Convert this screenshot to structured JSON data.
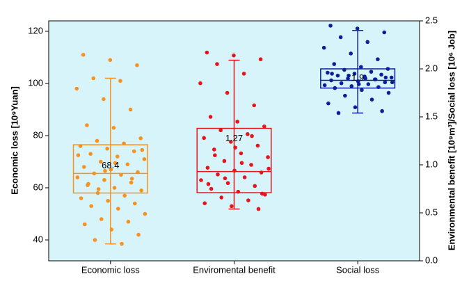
{
  "chart_data": {
    "type": "box",
    "categories": [
      "Economic loss",
      "Enviromental benefit",
      "Social loss"
    ],
    "ylabel": "Economic loss [10⁹Yuan]",
    "y2label": "Environmental benefit [10⁹m³]/Social loss [10⁶ Job]",
    "ylim": [
      32,
      124
    ],
    "yticks": [
      40,
      60,
      80,
      100,
      120
    ],
    "y2lim": [
      0,
      2.5
    ],
    "y2ticks": [
      {
        "value": 0,
        "label": "0.0"
      },
      {
        "value": 0.5,
        "label": "0.5"
      },
      {
        "value": 1,
        "label": "1.0"
      },
      {
        "value": 1.5,
        "label": "1.5"
      },
      {
        "value": 2,
        "label": "2.0"
      },
      {
        "value": 2.5,
        "label": "2.5"
      }
    ],
    "background": "#d8f4fb",
    "series": [
      {
        "color": "#f7921e",
        "axis": "y",
        "box": {
          "whisker_low": 38.5,
          "q1": 58,
          "median": 65.5,
          "q3": 76.5,
          "whisker_high": 102
        },
        "mean": 68.4,
        "points": [
          111,
          109,
          107,
          102,
          101,
          98,
          94,
          90,
          84,
          83,
          79,
          78,
          77,
          76,
          75,
          74,
          73,
          72,
          71,
          70,
          69,
          68,
          67,
          66,
          65.5,
          65,
          64,
          63,
          62,
          61,
          60,
          59,
          58,
          57,
          56,
          55,
          54,
          53,
          52,
          50,
          48,
          47,
          46,
          44,
          42,
          40,
          38.5,
          72.5,
          66.5,
          63.5,
          61.5,
          69.5,
          74.5,
          59.5
        ]
      },
      {
        "color": "#e8141c",
        "axis": "y2",
        "box": {
          "whisker_low": 0.54,
          "q1": 0.71,
          "median": 0.93,
          "q3": 1.38,
          "whisker_high": 2.09
        },
        "mean": 1.27,
        "points": [
          2.17,
          2.14,
          2.1,
          2.05,
          1.95,
          1.85,
          1.75,
          1.62,
          1.5,
          1.45,
          1.4,
          1.36,
          1.32,
          1.28,
          1.24,
          1.2,
          1.16,
          1.12,
          1.08,
          1.04,
          1.0,
          0.97,
          0.94,
          0.92,
          0.9,
          0.87,
          0.84,
          0.81,
          0.78,
          0.75,
          0.72,
          0.69,
          0.66,
          0.63,
          0.6,
          0.57,
          0.54,
          1.1,
          1.02,
          0.96,
          0.86,
          1.3,
          0.8,
          1.18,
          0.7
        ]
      },
      {
        "color": "#0b1f9c",
        "axis": "y2",
        "box": {
          "whisker_low": 1.54,
          "q1": 1.8,
          "median": 1.88,
          "q3": 2.0,
          "whisker_high": 2.4
        },
        "mean": 1.9,
        "points": [
          2.45,
          2.42,
          2.38,
          2.33,
          2.28,
          2.22,
          2.16,
          2.1,
          2.05,
          2.02,
          2.0,
          1.99,
          1.97,
          1.96,
          1.95,
          1.94,
          1.93,
          1.92,
          1.91,
          1.9,
          1.89,
          1.88,
          1.87,
          1.86,
          1.85,
          1.84,
          1.83,
          1.82,
          1.81,
          1.8,
          1.78,
          1.75,
          1.72,
          1.68,
          1.64,
          1.6,
          1.56,
          1.54,
          1.9,
          1.86,
          1.93,
          1.89,
          1.95,
          1.84,
          1.91
        ]
      }
    ]
  }
}
